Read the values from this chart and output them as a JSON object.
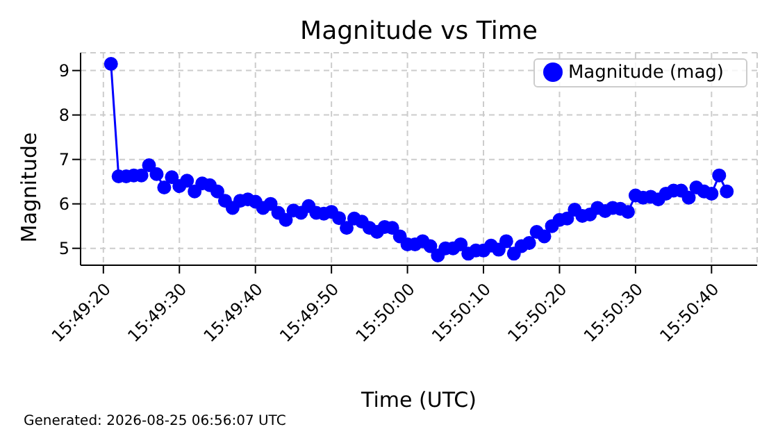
{
  "chart_data": {
    "type": "line",
    "title": "Magnitude vs Time",
    "xlabel": "Time (UTC)",
    "ylabel": "Magnitude",
    "annotations": [
      "Generated: 2026-08-25 06:56:07 UTC"
    ],
    "x": [
      15.8225,
      15.822778,
      15.823056,
      15.823333,
      15.823611,
      15.823889,
      15.824167,
      15.824444,
      15.824722,
      15.825,
      15.825278,
      15.825556,
      15.825833,
      15.826111,
      15.826389,
      15.826667,
      15.826944,
      15.827222,
      15.8275,
      15.827778,
      15.828056,
      15.828333,
      15.828611,
      15.828889,
      15.829167,
      15.829444,
      15.829722,
      15.83,
      15.830278,
      15.830556,
      15.830833,
      15.831111,
      15.831389,
      15.831667,
      15.831944,
      15.832222,
      15.8325,
      15.832778,
      15.833056,
      15.833333,
      15.833611,
      15.833889,
      15.834167,
      15.834444,
      15.834722,
      15.835,
      15.835278,
      15.835556,
      15.835833,
      15.836111,
      15.836389,
      15.836667,
      15.836944,
      15.837222,
      15.8375,
      15.837778,
      15.838056,
      15.838333,
      15.838611,
      15.838889,
      15.839167,
      15.839444,
      15.839722,
      15.84,
      15.840278,
      15.840556,
      15.840833,
      15.841111,
      15.841389,
      15.841667,
      15.841944,
      15.842222,
      15.8425,
      15.842778,
      15.843056,
      15.843333,
      15.843611,
      15.843889,
      15.844167,
      15.844444,
      15.844722,
      15.845
    ],
    "series": [
      {
        "name": "Magnitude (mag)",
        "color": "#0000ff",
        "values": [
          9.15,
          6.62,
          6.62,
          6.64,
          6.64,
          6.87,
          6.67,
          6.37,
          6.6,
          6.4,
          6.52,
          6.28,
          6.46,
          6.42,
          6.28,
          6.07,
          5.91,
          6.07,
          6.1,
          6.05,
          5.91,
          6.0,
          5.8,
          5.64,
          5.85,
          5.8,
          5.95,
          5.8,
          5.78,
          5.82,
          5.68,
          5.46,
          5.67,
          5.6,
          5.46,
          5.37,
          5.48,
          5.46,
          5.27,
          5.09,
          5.09,
          5.16,
          5.05,
          4.84,
          5.0,
          5.0,
          5.09,
          4.88,
          4.95,
          4.95,
          5.06,
          4.97,
          5.16,
          4.88,
          5.05,
          5.12,
          5.37,
          5.27,
          5.5,
          5.64,
          5.67,
          5.87,
          5.73,
          5.76,
          5.91,
          5.84,
          5.91,
          5.89,
          5.82,
          6.19,
          6.14,
          6.16,
          6.1,
          6.23,
          6.3,
          6.3,
          6.14,
          6.37,
          6.28,
          6.23,
          6.64,
          6.28
        ]
      }
    ],
    "xlim": [
      15.821389,
      15.846111
    ],
    "xticks": [
      {
        "value": 15.822222,
        "label": "15:49:20"
      },
      {
        "value": 15.825,
        "label": "15:49:30"
      },
      {
        "value": 15.827778,
        "label": "15:49:40"
      },
      {
        "value": 15.830556,
        "label": "15:49:50"
      },
      {
        "value": 15.833333,
        "label": "15:50:00"
      },
      {
        "value": 15.836111,
        "label": "15:50:10"
      },
      {
        "value": 15.838889,
        "label": "15:50:20"
      },
      {
        "value": 15.841667,
        "label": "15:50:30"
      },
      {
        "value": 15.844444,
        "label": "15:50:40"
      }
    ],
    "ylim": [
      4.62,
      9.4
    ],
    "yticks": [
      5,
      6,
      7,
      8,
      9
    ],
    "grid": true,
    "legend": "top right",
    "marker": "circle",
    "line_style": "solid"
  }
}
